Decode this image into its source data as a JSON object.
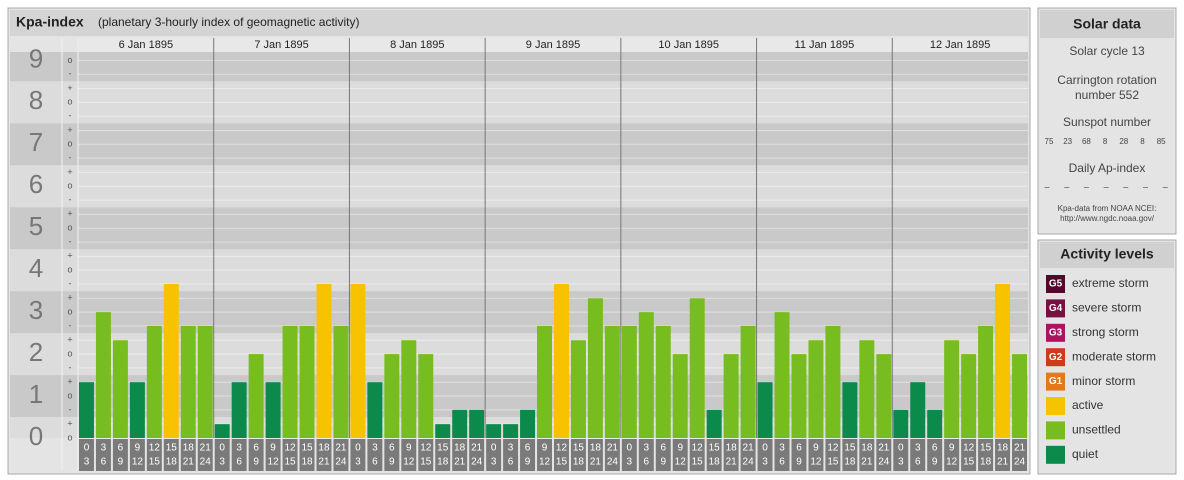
{
  "title": "Kpa-index",
  "subtitle": "(planetary 3-hourly index of geomagnetic activity)",
  "chart_data": {
    "type": "bar",
    "ylim": [
      0,
      9.2
    ],
    "yticks": [
      0,
      1,
      2,
      3,
      4,
      5,
      6,
      7,
      8,
      9
    ],
    "minor_ticks": [
      {
        "value": 0,
        "label": "o"
      },
      {
        "value": 0.33,
        "label": "+"
      },
      {
        "value": 0.67,
        "label": "-"
      },
      {
        "value": 1,
        "label": "o"
      },
      {
        "value": 1.33,
        "label": "+"
      },
      {
        "value": 1.67,
        "label": "-"
      },
      {
        "value": 2,
        "label": "o"
      },
      {
        "value": 2.33,
        "label": "+"
      },
      {
        "value": 2.67,
        "label": "-"
      },
      {
        "value": 3,
        "label": "o"
      },
      {
        "value": 3.33,
        "label": "+"
      },
      {
        "value": 3.67,
        "label": "-"
      },
      {
        "value": 4,
        "label": "o"
      },
      {
        "value": 4.33,
        "label": "+"
      },
      {
        "value": 4.67,
        "label": "-"
      },
      {
        "value": 5,
        "label": "o"
      },
      {
        "value": 5.33,
        "label": "+"
      },
      {
        "value": 5.67,
        "label": "-"
      },
      {
        "value": 6,
        "label": "o"
      },
      {
        "value": 6.33,
        "label": "+"
      },
      {
        "value": 6.67,
        "label": "-"
      },
      {
        "value": 7,
        "label": "o"
      },
      {
        "value": 7.33,
        "label": "+"
      },
      {
        "value": 7.67,
        "label": "-"
      },
      {
        "value": 8,
        "label": "o"
      },
      {
        "value": 8.33,
        "label": "+"
      },
      {
        "value": 8.67,
        "label": "-"
      },
      {
        "value": 9,
        "label": "o"
      }
    ],
    "hours": [
      0,
      3,
      6,
      9,
      12,
      15,
      18,
      21,
      24
    ],
    "days": [
      {
        "label": "6 Jan 1895",
        "values": [
          1.33,
          3,
          2.33,
          1.33,
          2.67,
          3.67,
          2.67,
          2.67
        ],
        "colors": [
          "#0b8a4b",
          "#78bd1f",
          "#78bd1f",
          "#0b8a4b",
          "#78bd1f",
          "#f7c200",
          "#78bd1f",
          "#78bd1f"
        ]
      },
      {
        "label": "7 Jan 1895",
        "values": [
          0.33,
          1.33,
          2,
          1.33,
          2.67,
          2.67,
          3.67,
          2.67
        ],
        "colors": [
          "#0b8a4b",
          "#0b8a4b",
          "#78bd1f",
          "#0b8a4b",
          "#78bd1f",
          "#78bd1f",
          "#f7c200",
          "#78bd1f"
        ]
      },
      {
        "label": "8 Jan 1895",
        "values": [
          3.67,
          1.33,
          2,
          2.33,
          2,
          0.33,
          0.67,
          0.67
        ],
        "colors": [
          "#f7c200",
          "#0b8a4b",
          "#78bd1f",
          "#78bd1f",
          "#78bd1f",
          "#0b8a4b",
          "#0b8a4b",
          "#0b8a4b"
        ]
      },
      {
        "label": "9 Jan 1895",
        "values": [
          0.33,
          0.33,
          0.67,
          2.67,
          3.67,
          2.33,
          3.33,
          2.67
        ],
        "colors": [
          "#0b8a4b",
          "#0b8a4b",
          "#0b8a4b",
          "#78bd1f",
          "#f7c200",
          "#78bd1f",
          "#78bd1f",
          "#78bd1f"
        ]
      },
      {
        "label": "10 Jan 1895",
        "values": [
          2.67,
          3,
          2.67,
          2,
          3.33,
          0.67,
          2,
          2.67
        ],
        "colors": [
          "#78bd1f",
          "#78bd1f",
          "#78bd1f",
          "#78bd1f",
          "#78bd1f",
          "#0b8a4b",
          "#78bd1f",
          "#78bd1f"
        ]
      },
      {
        "label": "11 Jan 1895",
        "values": [
          1.33,
          3,
          2,
          2.33,
          2.67,
          1.33,
          2.33,
          2
        ],
        "colors": [
          "#0b8a4b",
          "#78bd1f",
          "#78bd1f",
          "#78bd1f",
          "#78bd1f",
          "#0b8a4b",
          "#78bd1f",
          "#78bd1f"
        ]
      },
      {
        "label": "12 Jan 1895",
        "values": [
          0.67,
          1.33,
          0.67,
          2.33,
          2,
          2.67,
          3.67,
          2
        ],
        "colors": [
          "#0b8a4b",
          "#0b8a4b",
          "#0b8a4b",
          "#78bd1f",
          "#78bd1f",
          "#78bd1f",
          "#f7c200",
          "#78bd1f"
        ]
      }
    ]
  },
  "solar_data": {
    "title": "Solar data",
    "solar_cycle": "Solar cycle 13",
    "carrington": [
      "Carrington rotation",
      "number 552"
    ],
    "sunspot_title": "Sunspot number",
    "sunspot_numbers": [
      75,
      23,
      68,
      8,
      28,
      8,
      85
    ],
    "ap_title": "Daily Ap-index",
    "ap_values": [
      "–",
      "–",
      "–",
      "–",
      "–",
      "–",
      "–"
    ],
    "source": [
      "Kpa-data from NOAA NCEI:",
      "http://www.ngdc.noaa.gov/"
    ]
  },
  "activity_levels": {
    "title": "Activity levels",
    "items": [
      {
        "code": "G5",
        "name": "extreme storm",
        "color": "#52082a"
      },
      {
        "code": "G4",
        "name": "severe storm",
        "color": "#7a0f42"
      },
      {
        "code": "G3",
        "name": "strong storm",
        "color": "#a81560"
      },
      {
        "code": "G2",
        "name": "moderate storm",
        "color": "#cf3a1e"
      },
      {
        "code": "G1",
        "name": "minor storm",
        "color": "#e27a1c"
      },
      {
        "code": null,
        "name": "active",
        "color": "#f7c200"
      },
      {
        "code": null,
        "name": "unsettled",
        "color": "#78bd1f"
      },
      {
        "code": null,
        "name": "quiet",
        "color": "#0b8a4b"
      }
    ]
  }
}
